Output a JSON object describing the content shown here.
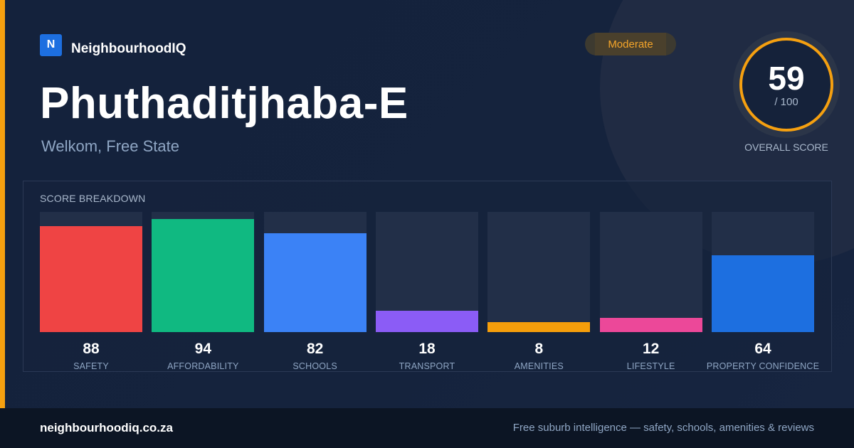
{
  "brand": {
    "logo_letter": "N",
    "name": "NeighbourhoodIQ"
  },
  "suburb": {
    "name": "Phuthaditjhaba-E",
    "location": "Welkom, Free State"
  },
  "badge": {
    "label": "Moderate",
    "color": "#f5a52a"
  },
  "overall": {
    "score": "59",
    "max_label": "/ 100",
    "caption": "OVERALL SCORE",
    "ring_color": "#f5a010"
  },
  "breakdown": {
    "title": "SCORE BREAKDOWN",
    "max": 100,
    "items": [
      {
        "label": "SAFETY",
        "value": 88,
        "color": "#ef4444"
      },
      {
        "label": "AFFORDABILITY",
        "value": 94,
        "color": "#10b981"
      },
      {
        "label": "SCHOOLS",
        "value": 82,
        "color": "#3b82f6"
      },
      {
        "label": "TRANSPORT",
        "value": 18,
        "color": "#8b5cf6"
      },
      {
        "label": "AMENITIES",
        "value": 8,
        "color": "#f59e0b"
      },
      {
        "label": "LIFESTYLE",
        "value": 12,
        "color": "#ec4899"
      },
      {
        "label": "PROPERTY CONFIDENCE",
        "value": 64,
        "color": "#1d6fe0"
      }
    ]
  },
  "footer": {
    "url": "neighbourhoodiq.co.za",
    "tagline": "Free suburb intelligence — safety, schools, amenities & reviews"
  }
}
